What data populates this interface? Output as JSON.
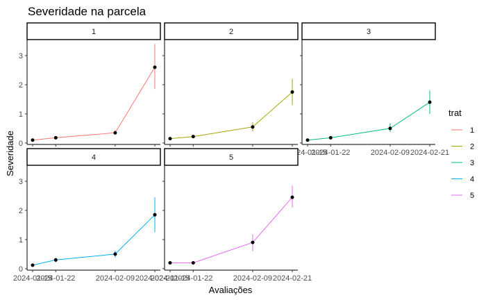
{
  "chart_data": {
    "type": "line",
    "title": "Severidade na parcela",
    "xlabel": "Avaliações",
    "ylabel": "Severidade",
    "x": [
      "2024-01-15",
      "2024-01-22",
      "2024-02-09",
      "2024-02-21"
    ],
    "x_tick_labels": [
      "2024-01-15",
      "2024-01-22",
      "2024-02-09",
      "2024-02-21"
    ],
    "ylim": [
      -0.05,
      3.55
    ],
    "y_ticks": [
      0,
      1,
      2,
      3
    ],
    "grid": false,
    "facet_by": "trat",
    "legend": {
      "title": "trat",
      "placement": "right"
    },
    "series": [
      {
        "name": "1",
        "color": "#F8766D",
        "y": [
          0.1,
          0.18,
          0.35,
          2.6
        ],
        "err_low": [
          0.06,
          0.14,
          0.28,
          1.85
        ],
        "err_high": [
          0.14,
          0.22,
          0.45,
          3.4
        ]
      },
      {
        "name": "2",
        "color": "#A3A500",
        "y": [
          0.15,
          0.22,
          0.55,
          1.75
        ],
        "err_low": [
          0.12,
          0.18,
          0.4,
          1.3
        ],
        "err_high": [
          0.18,
          0.26,
          0.72,
          2.2
        ]
      },
      {
        "name": "3",
        "color": "#00BF7D",
        "y": [
          0.1,
          0.18,
          0.5,
          1.4
        ],
        "err_low": [
          0.06,
          0.14,
          0.38,
          1.0
        ],
        "err_high": [
          0.14,
          0.22,
          0.68,
          1.8
        ]
      },
      {
        "name": "4",
        "color": "#00B0F6",
        "y": [
          0.12,
          0.3,
          0.5,
          1.85
        ],
        "err_low": [
          0.06,
          0.22,
          0.38,
          1.25
        ],
        "err_high": [
          0.18,
          0.38,
          0.62,
          2.45
        ]
      },
      {
        "name": "5",
        "color": "#E76BF3",
        "y": [
          0.2,
          0.2,
          0.9,
          2.45
        ],
        "err_low": [
          0.16,
          0.16,
          0.6,
          2.1
        ],
        "err_high": [
          0.24,
          0.24,
          1.18,
          2.85
        ]
      }
    ]
  }
}
